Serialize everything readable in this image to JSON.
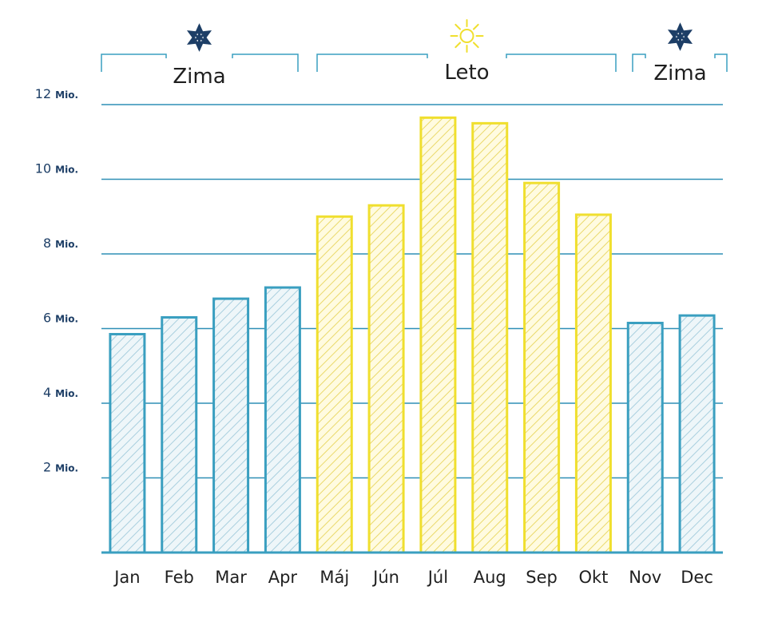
{
  "chart_data": {
    "type": "bar",
    "categories": [
      "Jan",
      "Feb",
      "Mar",
      "Apr",
      "Máj",
      "Jún",
      "Júl",
      "Aug",
      "Sep",
      "Okt",
      "Nov",
      "Dec"
    ],
    "values": [
      5.85,
      6.3,
      6.8,
      7.1,
      9.0,
      9.3,
      11.65,
      11.5,
      9.9,
      9.05,
      6.15,
      6.35
    ],
    "season": [
      "winter",
      "winter",
      "winter",
      "winter",
      "summer",
      "summer",
      "summer",
      "summer",
      "summer",
      "summer",
      "winter",
      "winter"
    ],
    "ylim": [
      0,
      12
    ],
    "y_ticks": [
      {
        "value": 2,
        "number": "2",
        "unit": "Mio."
      },
      {
        "value": 4,
        "number": "4",
        "unit": "Mio."
      },
      {
        "value": 6,
        "number": "6",
        "unit": "Mio."
      },
      {
        "value": 8,
        "number": "8",
        "unit": "Mio."
      },
      {
        "value": 10,
        "number": "10",
        "unit": "Mio."
      },
      {
        "value": 12,
        "number": "12",
        "unit": "Mio."
      }
    ],
    "grid": true,
    "seasons": [
      {
        "label": "Zima",
        "icon": "snowflake-icon",
        "from": "Jan",
        "to": "Apr"
      },
      {
        "label": "Leto",
        "icon": "sun-icon",
        "from": "Máj",
        "to": "Okt"
      },
      {
        "label": "Zima",
        "icon": "snowflake-icon",
        "from": "Nov",
        "to": "Dec"
      }
    ],
    "colors": {
      "winter": "#3a9fc0",
      "winter_fill": "#eef6f9",
      "winter_hatch": "#a9cfde",
      "summer": "#f0df2e",
      "summer_fill": "#fffbe0",
      "summer_hatch": "#ead96a",
      "grid": "#2f8fb6",
      "tick_text": "#1d3e66",
      "icon_dark": "#1d3e66"
    }
  }
}
